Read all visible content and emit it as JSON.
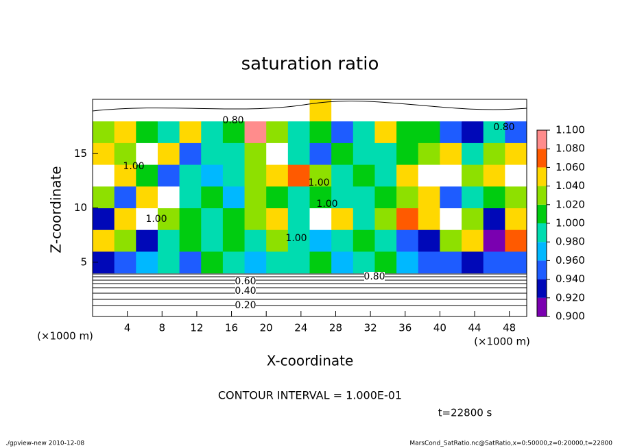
{
  "chart_data": {
    "type": "heatmap",
    "title": "saturation ratio",
    "x_label": "X-coordinate",
    "y_label": "Z-coordinate",
    "x_unit": "(×1000 m)",
    "y_unit": "(×1000 m)",
    "xlim": [
      0,
      50
    ],
    "ylim": [
      0,
      20
    ],
    "xticks": [
      4,
      8,
      12,
      16,
      20,
      24,
      28,
      32,
      36,
      40,
      44,
      48
    ],
    "yticks": [
      5,
      10,
      15
    ],
    "x": [
      1.25,
      3.75,
      6.25,
      8.75,
      11.25,
      13.75,
      16.25,
      18.75,
      21.25,
      23.75,
      26.25,
      28.75,
      31.25,
      33.75,
      36.25,
      38.75,
      41.25,
      43.75,
      46.25,
      48.75
    ],
    "y": [
      1,
      3,
      5,
      7,
      9,
      11,
      13,
      15,
      17,
      19
    ],
    "z": [
      [
        0.2,
        0.2,
        0.2,
        0.2,
        0.2,
        0.2,
        0.2,
        0.2,
        0.2,
        0.2,
        0.2,
        0.2,
        0.2,
        0.2,
        0.2,
        0.2,
        0.2,
        0.2,
        0.2,
        0.2
      ],
      [
        0.5,
        0.5,
        0.5,
        0.5,
        0.5,
        0.5,
        0.5,
        0.5,
        0.5,
        0.5,
        0.5,
        0.5,
        0.5,
        0.5,
        0.5,
        0.5,
        0.5,
        0.5,
        0.5,
        0.5
      ],
      [
        0.94,
        0.96,
        0.98,
        1.0,
        0.95,
        1.02,
        1.0,
        0.97,
        1.0,
        0.99,
        1.01,
        0.98,
        1.0,
        1.02,
        0.98,
        0.96,
        0.95,
        0.94,
        0.95,
        0.96
      ],
      [
        1.06,
        1.04,
        0.94,
        1.0,
        1.02,
        1.0,
        1.01,
        0.99,
        1.03,
        1.0,
        0.97,
        1.0,
        1.02,
        1.0,
        0.95,
        0.93,
        1.04,
        1.06,
        0.92,
        1.08
      ],
      [
        0.93,
        1.06,
        1.12,
        1.04,
        1.01,
        1.0,
        1.02,
        1.03,
        1.06,
        1.0,
        1.12,
        1.06,
        1.0,
        1.04,
        1.08,
        1.06,
        1.12,
        1.04,
        0.94,
        1.06
      ],
      [
        1.04,
        0.96,
        1.06,
        1.12,
        1.0,
        1.02,
        0.98,
        1.04,
        1.02,
        1.0,
        1.02,
        1.0,
        1.0,
        1.02,
        1.04,
        1.06,
        0.96,
        1.0,
        1.02,
        1.04
      ],
      [
        1.12,
        1.06,
        1.02,
        0.96,
        1.0,
        0.98,
        1.0,
        1.04,
        1.06,
        1.08,
        1.04,
        1.0,
        1.02,
        1.0,
        1.06,
        1.12,
        1.12,
        1.04,
        1.06,
        1.12
      ],
      [
        1.06,
        1.04,
        1.12,
        1.06,
        0.96,
        1.0,
        1.0,
        1.04,
        1.12,
        1.0,
        0.95,
        1.02,
        1.0,
        1.0,
        1.02,
        1.04,
        1.06,
        1.0,
        1.04,
        1.06
      ],
      [
        1.04,
        1.06,
        1.02,
        1.0,
        1.06,
        1.0,
        1.02,
        1.1,
        1.04,
        1.0,
        1.02,
        0.96,
        1.0,
        1.06,
        1.02,
        1.02,
        0.96,
        0.94,
        1.0,
        0.96
      ],
      [
        0.8,
        0.8,
        0.8,
        0.8,
        0.8,
        0.85,
        0.8,
        0.8,
        0.8,
        0.8,
        1.06,
        0.8,
        0.8,
        0.8,
        0.8,
        0.8,
        0.8,
        0.8,
        0.8,
        0.8
      ]
    ],
    "colorbar": {
      "levels": [
        {
          "value": 0.9,
          "label": "0.900"
        },
        {
          "value": 0.92,
          "label": "0.920"
        },
        {
          "value": 0.94,
          "label": "0.940"
        },
        {
          "value": 0.96,
          "label": "0.960"
        },
        {
          "value": 0.98,
          "label": "0.980"
        },
        {
          "value": 1.0,
          "label": "1.000"
        },
        {
          "value": 1.02,
          "label": "1.020"
        },
        {
          "value": 1.04,
          "label": "1.040"
        },
        {
          "value": 1.06,
          "label": "1.060"
        },
        {
          "value": 1.08,
          "label": "1.080"
        },
        {
          "value": 1.1,
          "label": "1.100"
        }
      ],
      "colors": [
        "#7a00b0",
        "#0008b8",
        "#1e5cff",
        "#00b8ff",
        "#00dcb0",
        "#00cc10",
        "#8ee000",
        "#ffd800",
        "#ff5a00",
        "#ff8c8c"
      ]
    },
    "contour_labels": [
      "0.80",
      "0.80",
      "1.00",
      "1.00",
      "1.00",
      "1.00",
      "1.00",
      "0.60",
      "0.40",
      "0.20",
      "0.80"
    ],
    "contour_interval": "CONTOUR INTERVAL = 1.000E-01",
    "time_label": "t=22800 s",
    "footer_left": "./gpview-new  2010-12-08",
    "footer_right": "MarsCond_SatRatio.nc@SatRatio,x=0:50000,z=0:20000,t=22800"
  }
}
